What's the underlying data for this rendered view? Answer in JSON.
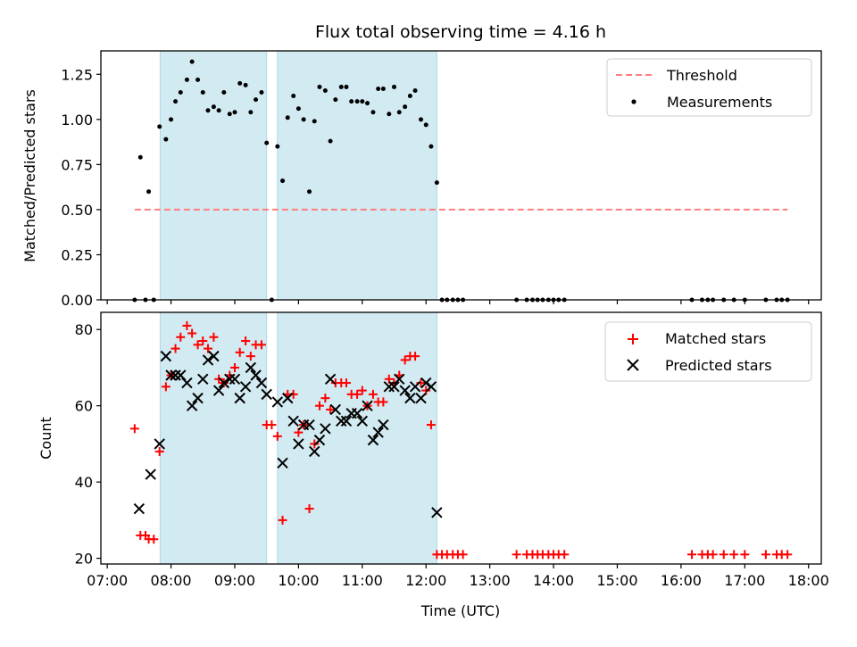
{
  "title": "Flux total observing time = 4.16 h",
  "colors": {
    "span": "#add8e6",
    "threshold": "#ff7f7f",
    "measurements": "#000000",
    "matched": "#ff0000",
    "predicted": "#000000"
  },
  "chart_data": [
    {
      "type": "scatter",
      "ylabel": "Matched/Predicted stars",
      "xlim": [
        6.9,
        18.2
      ],
      "ylim": [
        0,
        1.38
      ],
      "yticks": [
        0.0,
        0.25,
        0.5,
        0.75,
        1.0,
        1.25
      ],
      "ytick_labels": [
        "0.00",
        "0.25",
        "0.50",
        "0.75",
        "1.00",
        "1.25"
      ],
      "legend_position": "top-right",
      "legend": [
        "Threshold",
        "Measurements"
      ],
      "shaded_spans": [
        [
          7.83,
          9.5
        ],
        [
          9.67,
          12.17
        ]
      ],
      "threshold": {
        "name": "Threshold",
        "x": [
          7.43,
          17.67
        ],
        "y": 0.5
      },
      "series": [
        {
          "name": "Measurements",
          "x": [
            7.43,
            7.52,
            7.6,
            7.65,
            7.73,
            7.82,
            7.92,
            8.0,
            8.07,
            8.15,
            8.25,
            8.33,
            8.42,
            8.5,
            8.58,
            8.67,
            8.75,
            8.83,
            8.92,
            9.0,
            9.08,
            9.17,
            9.25,
            9.33,
            9.42,
            9.5,
            9.58,
            9.67,
            9.75,
            9.83,
            9.92,
            10.0,
            10.08,
            10.17,
            10.25,
            10.33,
            10.42,
            10.5,
            10.58,
            10.67,
            10.75,
            10.83,
            10.92,
            11.0,
            11.08,
            11.17,
            11.25,
            11.33,
            11.42,
            11.5,
            11.58,
            11.67,
            11.75,
            11.83,
            11.92,
            12.0,
            12.08,
            12.17,
            12.25,
            12.33,
            12.42,
            12.5,
            12.58,
            13.42,
            13.58,
            13.67,
            13.75,
            13.83,
            13.92,
            14.0,
            14.08,
            14.17,
            16.17,
            16.33,
            16.42,
            16.5,
            16.67,
            16.83,
            17.0,
            17.33,
            17.5,
            17.58,
            17.67
          ],
          "y": [
            0.0,
            0.79,
            0.0,
            0.6,
            0.0,
            0.96,
            0.89,
            1.0,
            1.1,
            1.15,
            1.22,
            1.32,
            1.22,
            1.15,
            1.05,
            1.07,
            1.05,
            1.15,
            1.03,
            1.04,
            1.2,
            1.19,
            1.04,
            1.11,
            1.15,
            0.87,
            0.0,
            0.85,
            0.66,
            1.01,
            1.13,
            1.06,
            1.0,
            0.6,
            0.99,
            1.18,
            1.16,
            0.88,
            1.11,
            1.18,
            1.18,
            1.1,
            1.1,
            1.1,
            1.09,
            1.04,
            1.17,
            1.17,
            1.03,
            1.18,
            1.04,
            1.07,
            1.13,
            1.16,
            1.0,
            0.97,
            0.85,
            0.65,
            0.0,
            0.0,
            0.0,
            0.0,
            0.0,
            0.0,
            0.0,
            0.0,
            0.0,
            0.0,
            0.0,
            0.0,
            0.0,
            0.0,
            0.0,
            0.0,
            0.0,
            0.0,
            0.0,
            0.0,
            0.0,
            0.0,
            0.0,
            0.0,
            0.0
          ]
        }
      ]
    },
    {
      "type": "scatter",
      "xlabel": "Time (UTC)",
      "ylabel": "Count",
      "xlim": [
        6.9,
        18.2
      ],
      "ylim": [
        18.5,
        84.5
      ],
      "yticks": [
        20,
        40,
        60,
        80
      ],
      "ytick_labels": [
        "20",
        "40",
        "60",
        "80"
      ],
      "xticks": [
        7,
        8,
        9,
        10,
        11,
        12,
        13,
        14,
        15,
        16,
        17,
        18
      ],
      "xtick_labels": [
        "07:00",
        "08:00",
        "09:00",
        "10:00",
        "11:00",
        "12:00",
        "13:00",
        "14:00",
        "15:00",
        "16:00",
        "17:00",
        "18:00"
      ],
      "legend_position": "top-right",
      "legend": [
        "Matched stars",
        "Predicted stars"
      ],
      "shaded_spans": [
        [
          7.83,
          9.5
        ],
        [
          9.67,
          12.17
        ]
      ],
      "series": [
        {
          "name": "Matched stars",
          "marker": "plus",
          "x": [
            7.43,
            7.52,
            7.6,
            7.65,
            7.73,
            7.82,
            7.92,
            8.0,
            8.07,
            8.15,
            8.25,
            8.33,
            8.42,
            8.5,
            8.58,
            8.67,
            8.75,
            8.83,
            8.92,
            9.0,
            9.08,
            9.17,
            9.25,
            9.33,
            9.42,
            9.5,
            9.58,
            9.67,
            9.75,
            9.83,
            9.92,
            10.0,
            10.08,
            10.17,
            10.25,
            10.33,
            10.42,
            10.5,
            10.58,
            10.67,
            10.75,
            10.83,
            10.92,
            11.0,
            11.08,
            11.17,
            11.25,
            11.33,
            11.42,
            11.5,
            11.58,
            11.67,
            11.75,
            11.83,
            11.92,
            12.0,
            12.08,
            12.17,
            12.25,
            12.33,
            12.42,
            12.5,
            12.58,
            13.42,
            13.58,
            13.67,
            13.75,
            13.83,
            13.92,
            14.0,
            14.08,
            14.17,
            16.17,
            16.33,
            16.42,
            16.5,
            16.67,
            16.83,
            17.0,
            17.33,
            17.5,
            17.58,
            17.67
          ],
          "y": [
            54,
            26,
            26,
            25,
            25,
            48,
            65,
            68,
            75,
            78,
            81,
            79,
            76,
            77,
            75,
            78,
            67,
            66,
            68,
            70,
            74,
            77,
            73,
            76,
            76,
            55,
            55,
            52,
            30,
            63,
            63,
            53,
            55,
            33,
            50,
            60,
            62,
            59,
            66,
            66,
            66,
            63,
            63,
            64,
            60,
            63,
            61,
            61,
            67,
            66,
            68,
            72,
            73,
            73,
            66,
            64,
            55,
            21,
            21,
            21,
            21,
            21,
            21,
            21,
            21,
            21,
            21,
            21,
            21,
            21,
            21,
            21,
            21,
            21,
            21,
            21,
            21,
            21,
            21,
            21,
            21,
            21,
            21
          ]
        },
        {
          "name": "Predicted stars",
          "marker": "x",
          "x": [
            7.5,
            7.68,
            7.82,
            7.92,
            8.0,
            8.07,
            8.15,
            8.25,
            8.33,
            8.42,
            8.5,
            8.58,
            8.67,
            8.75,
            8.83,
            8.92,
            9.0,
            9.08,
            9.17,
            9.25,
            9.33,
            9.42,
            9.5,
            9.67,
            9.75,
            9.83,
            9.92,
            10.0,
            10.08,
            10.17,
            10.25,
            10.33,
            10.42,
            10.5,
            10.58,
            10.67,
            10.75,
            10.83,
            10.92,
            11.0,
            11.08,
            11.17,
            11.25,
            11.33,
            11.42,
            11.5,
            11.58,
            11.67,
            11.75,
            11.83,
            11.92,
            12.0,
            12.08,
            12.17
          ],
          "y": [
            33,
            42,
            50,
            73,
            68,
            68,
            68,
            66,
            60,
            62,
            67,
            72,
            73,
            64,
            66,
            67,
            67,
            62,
            65,
            70,
            68,
            66,
            63,
            61,
            45,
            62,
            56,
            50,
            55,
            55,
            48,
            51,
            54,
            67,
            59,
            56,
            56,
            58,
            58,
            56,
            60,
            51,
            53,
            55,
            65,
            65,
            67,
            64,
            62,
            65,
            62,
            66,
            65,
            32
          ]
        }
      ]
    }
  ]
}
